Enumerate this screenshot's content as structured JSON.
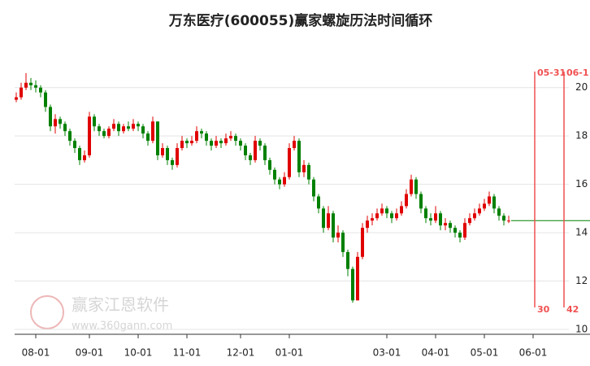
{
  "chart_data": {
    "type": "candlestick",
    "title": "万东医疗(600055)赢家螺旋历法时间循环",
    "watermark": {
      "name": "赢家江恩软件",
      "url": "www.360gann.com"
    },
    "categories": [
      null,
      null,
      null,
      null,
      "08-01",
      null,
      null,
      null,
      null,
      null,
      null,
      null,
      null,
      null,
      null,
      "09-01",
      null,
      null,
      null,
      null,
      null,
      null,
      null,
      null,
      null,
      "10-01",
      null,
      null,
      null,
      null,
      null,
      null,
      null,
      null,
      null,
      "11-01",
      null,
      null,
      null,
      null,
      null,
      null,
      null,
      null,
      null,
      null,
      "12-01",
      null,
      null,
      null,
      null,
      null,
      null,
      null,
      null,
      null,
      "01-01",
      null,
      null,
      null,
      null,
      null,
      null,
      null,
      null,
      null,
      null,
      null,
      null,
      null,
      null,
      null,
      null,
      null,
      null,
      null,
      "03-01",
      null,
      null,
      null,
      null,
      null,
      null,
      null,
      null,
      null,
      "04-01",
      null,
      null,
      null,
      null,
      null,
      null,
      null,
      null,
      null,
      "05-01",
      null,
      null,
      null,
      null,
      null,
      null,
      null,
      null,
      null,
      "06-01",
      null,
      null,
      null,
      null,
      null,
      null,
      null,
      null,
      null,
      null,
      null
    ],
    "open": [
      19.5,
      19.6,
      20.0,
      20.2,
      20.1,
      20.0,
      19.8,
      19.2,
      18.4,
      18.7,
      18.5,
      18.2,
      17.8,
      17.5,
      17.0,
      17.2,
      18.8,
      18.4,
      18.2,
      18.0,
      18.3,
      18.5,
      18.2,
      18.4,
      18.3,
      18.5,
      18.4,
      18.1,
      17.8,
      18.6,
      17.2,
      17.5,
      17.0,
      16.8,
      17.5,
      17.8,
      17.7,
      17.8,
      18.2,
      18.1,
      17.8,
      17.6,
      17.8,
      17.7,
      17.9,
      18.0,
      17.8,
      17.6,
      17.2,
      17.0,
      17.8,
      17.6,
      17.0,
      16.6,
      16.2,
      16.0,
      16.3,
      17.5,
      17.8,
      16.5,
      16.8,
      16.2,
      15.5,
      15.0,
      14.2,
      14.8,
      13.8,
      14.0,
      13.2,
      12.5,
      11.2,
      13.0,
      14.2,
      14.5,
      14.6,
      14.8,
      15.0,
      14.8,
      14.6,
      14.8,
      15.1,
      15.6,
      16.2,
      15.6,
      15.0,
      14.6,
      14.5,
      14.8,
      14.3,
      14.4,
      14.2,
      14.0,
      13.8,
      14.4,
      14.6,
      14.8,
      15.0,
      15.2,
      15.5,
      15.0,
      14.7,
      14.5,
      null,
      null,
      null,
      null,
      null,
      null,
      null,
      null,
      null,
      null,
      null,
      null,
      null,
      null,
      null,
      null
    ],
    "high": [
      19.8,
      20.2,
      20.6,
      20.4,
      20.3,
      20.1,
      19.9,
      19.3,
      18.9,
      18.8,
      18.6,
      18.3,
      17.9,
      17.6,
      17.4,
      19.0,
      18.9,
      18.5,
      18.3,
      18.4,
      18.7,
      18.6,
      18.5,
      18.6,
      18.7,
      18.6,
      18.5,
      18.2,
      18.8,
      18.6,
      17.7,
      17.6,
      17.1,
      17.7,
      18.0,
      17.9,
      18.0,
      18.4,
      18.3,
      18.2,
      17.9,
      18.0,
      17.9,
      18.1,
      18.2,
      18.1,
      17.9,
      17.7,
      17.3,
      18.0,
      17.9,
      17.7,
      17.1,
      16.7,
      16.3,
      16.5,
      17.7,
      18.0,
      17.9,
      17.0,
      16.9,
      16.3,
      15.6,
      15.1,
      15.1,
      14.9,
      14.3,
      14.1,
      13.3,
      12.6,
      13.2,
      14.4,
      14.7,
      14.8,
      15.0,
      15.2,
      15.1,
      14.9,
      15.0,
      15.3,
      15.8,
      16.4,
      16.3,
      15.7,
      15.1,
      14.8,
      15.1,
      14.9,
      14.6,
      14.5,
      14.3,
      14.1,
      14.6,
      14.8,
      15.0,
      15.2,
      15.4,
      15.7,
      15.6,
      15.1,
      14.8,
      14.7,
      null,
      null,
      null,
      null,
      null,
      null,
      null,
      null,
      null,
      null,
      null,
      null,
      null,
      null,
      null,
      null
    ],
    "low": [
      19.4,
      19.5,
      19.9,
      19.9,
      19.8,
      19.6,
      19.0,
      18.2,
      18.1,
      18.3,
      18.0,
      17.6,
      17.3,
      16.8,
      16.9,
      17.1,
      18.2,
      18.0,
      17.9,
      17.9,
      18.2,
      18.0,
      18.1,
      18.2,
      18.2,
      18.2,
      17.9,
      17.6,
      17.7,
      17.0,
      17.1,
      16.8,
      16.6,
      16.7,
      17.4,
      17.5,
      17.6,
      17.7,
      17.9,
      17.6,
      17.4,
      17.5,
      17.5,
      17.6,
      17.8,
      17.6,
      17.4,
      17.0,
      16.8,
      16.9,
      17.4,
      16.8,
      16.4,
      16.0,
      15.8,
      15.9,
      16.2,
      17.4,
      16.3,
      16.3,
      16.0,
      15.3,
      14.8,
      14.0,
      14.1,
      13.6,
      13.6,
      13.0,
      12.2,
      11.1,
      11.2,
      12.9,
      14.0,
      14.3,
      14.5,
      14.7,
      14.6,
      14.4,
      14.5,
      14.7,
      15.0,
      15.5,
      15.4,
      14.8,
      14.4,
      14.3,
      14.4,
      14.1,
      14.1,
      14.0,
      13.8,
      13.6,
      13.7,
      14.3,
      14.5,
      14.7,
      14.9,
      15.1,
      14.8,
      14.5,
      14.3,
      14.4,
      null,
      null,
      null,
      null,
      null,
      null,
      null,
      null,
      null,
      null,
      null,
      null,
      null,
      null,
      null,
      null
    ],
    "close": [
      19.6,
      20.0,
      20.2,
      20.1,
      20.0,
      19.8,
      19.2,
      18.4,
      18.7,
      18.5,
      18.2,
      17.8,
      17.5,
      17.0,
      17.2,
      18.8,
      18.4,
      18.2,
      18.0,
      18.3,
      18.5,
      18.2,
      18.4,
      18.3,
      18.5,
      18.4,
      18.1,
      17.8,
      18.6,
      17.2,
      17.5,
      17.0,
      16.8,
      17.5,
      17.8,
      17.7,
      17.8,
      18.2,
      18.1,
      17.8,
      17.6,
      17.8,
      17.7,
      17.9,
      18.0,
      17.8,
      17.6,
      17.2,
      17.0,
      17.8,
      17.6,
      17.0,
      16.6,
      16.2,
      16.0,
      16.3,
      17.5,
      17.8,
      16.5,
      16.8,
      16.2,
      15.5,
      15.0,
      14.2,
      14.8,
      13.8,
      14.0,
      13.2,
      12.5,
      11.2,
      13.0,
      14.2,
      14.5,
      14.6,
      14.8,
      15.0,
      14.8,
      14.6,
      14.8,
      15.1,
      15.6,
      16.2,
      15.6,
      15.0,
      14.6,
      14.5,
      14.8,
      14.3,
      14.4,
      14.2,
      14.0,
      13.8,
      14.4,
      14.6,
      14.8,
      15.0,
      15.2,
      15.5,
      15.0,
      14.7,
      14.5,
      14.5,
      null,
      null,
      null,
      null,
      null,
      null,
      null,
      null,
      null,
      null,
      null,
      null,
      null,
      null,
      null,
      null
    ],
    "up_color": "#e00000",
    "down_color": "#008000",
    "projection": 14.5,
    "cycle_lines": [
      {
        "label": "05-31",
        "days": 30
      },
      {
        "label": "06-1",
        "days": 42
      }
    ],
    "cycle_color": "#f05050",
    "ylim": [
      10,
      21
    ],
    "yticks": [
      10,
      12,
      14,
      16,
      18,
      20
    ],
    "grid": true
  }
}
